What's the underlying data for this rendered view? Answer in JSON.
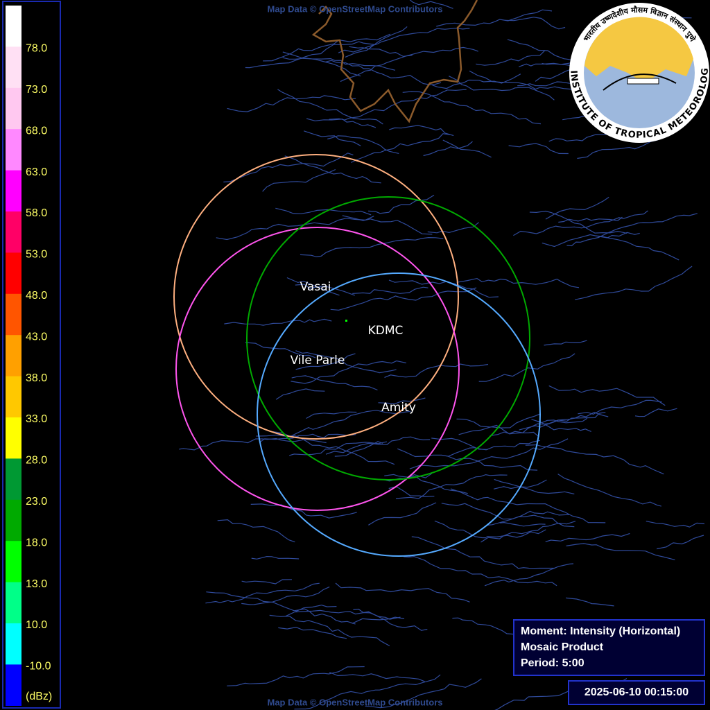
{
  "legend": {
    "labels": [
      "78.0",
      "73.0",
      "68.0",
      "63.0",
      "58.0",
      "53.0",
      "48.0",
      "43.0",
      "38.0",
      "33.0",
      "28.0",
      "23.0",
      "18.0",
      "13.0",
      "10.0",
      "-10.0"
    ],
    "unit": "(dBz)"
  },
  "stations": [
    "Vasai",
    "KDMC",
    "Vile Parle",
    "Amity"
  ],
  "info": [
    "Moment: Intensity (Horizontal)",
    "Mosaic Product",
    "Period: 5:00"
  ],
  "timestamp": "2025-06-10 00:15:00",
  "attribution_top": "Map Data © OpenStreetMap Contributors",
  "attribution_bottom": "Map Data © OpenStreetMap Contributors",
  "logo": {
    "english": "INDIAN INSTITUTE OF TROPICAL METEOROLOGY PUNE",
    "hindi": "भारतीय उष्णदेशीय मौसम विज्ञान संस्थान पुणे"
  }
}
